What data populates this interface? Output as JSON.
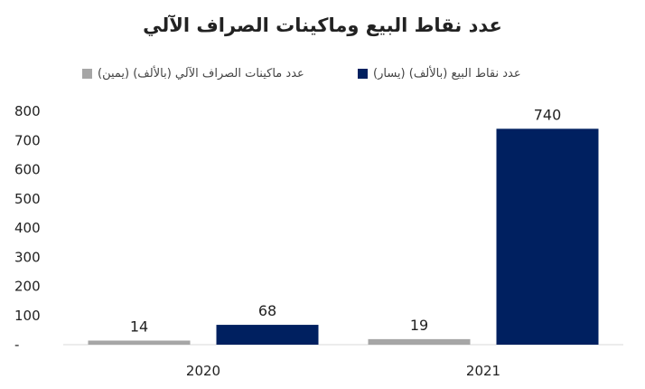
{
  "chart_data": {
    "type": "bar",
    "title": "عدد نقاط البيع وماكينات الصراف الآلي",
    "categories": [
      "2020",
      "2021"
    ],
    "series": [
      {
        "name": "عدد ماكينات الصراف الآلي (بالألف) (يمين)",
        "values": [
          14,
          19
        ],
        "color": "#a6a6a6"
      },
      {
        "name": "(يسار) (بالألف) عدد نقاط البيع",
        "values": [
          68,
          740
        ],
        "color": "#002060"
      }
    ],
    "y_ticks": [
      "-",
      "100",
      "200",
      "300",
      "400",
      "500",
      "600",
      "700",
      "800"
    ],
    "ylim": [
      0,
      800
    ],
    "grid": false,
    "legend_position": "top",
    "xlabel": "",
    "ylabel": ""
  }
}
